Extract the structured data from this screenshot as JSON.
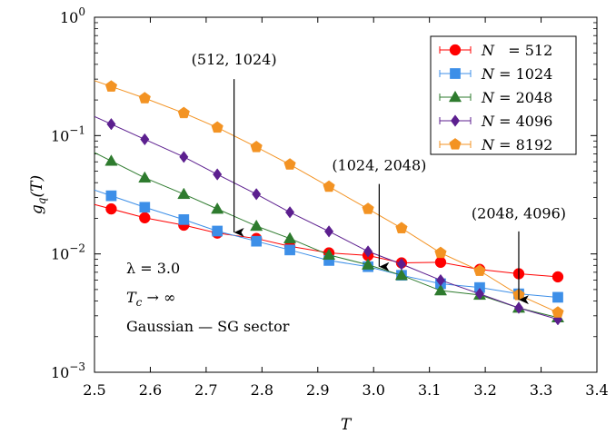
{
  "chart_data": {
    "type": "line",
    "title": "",
    "xlabel": "T",
    "ylabel": "g_q(T)",
    "xlim": [
      2.5,
      3.4
    ],
    "ylim": [
      0.001,
      1
    ],
    "yscale": "log",
    "grid": false,
    "legend_position": "top-right",
    "x_ticks": [
      2.5,
      2.6,
      2.7,
      2.8,
      2.9,
      3.0,
      3.1,
      3.2,
      3.3,
      3.4
    ],
    "x_tick_labels": [
      "2.5",
      "2.6",
      "2.7",
      "2.8",
      "2.9",
      "3.0",
      "3.1",
      "3.2",
      "3.3",
      "3.4"
    ],
    "y_ticks": [
      {
        "value": 1,
        "base": "10",
        "exp": "0"
      },
      {
        "value": 0.1,
        "base": "10",
        "exp": "−1"
      },
      {
        "value": 0.01,
        "base": "10",
        "exp": "−2"
      },
      {
        "value": 0.001,
        "base": "10",
        "exp": "−3"
      }
    ],
    "series": [
      {
        "name": "N = 512",
        "legend_label": "N   = 512",
        "color": "#ff0000",
        "marker": "circle",
        "x": [
          2.53,
          2.59,
          2.66,
          2.72,
          2.79,
          2.85,
          2.92,
          2.99,
          3.05,
          3.12,
          3.19,
          3.26,
          3.33
        ],
        "y": [
          0.024,
          0.0202,
          0.0175,
          0.015,
          0.0135,
          0.0116,
          0.0102,
          0.0097,
          0.0084,
          0.0085,
          0.0074,
          0.0068,
          0.0064
        ]
      },
      {
        "name": "N = 1024",
        "legend_label": "N = 1024",
        "color": "#3d8fe8",
        "marker": "square",
        "x": [
          2.53,
          2.59,
          2.66,
          2.72,
          2.79,
          2.85,
          2.92,
          2.99,
          3.05,
          3.12,
          3.19,
          3.26,
          3.33
        ],
        "y": [
          0.031,
          0.0248,
          0.0195,
          0.0156,
          0.0128,
          0.0108,
          0.0088,
          0.0078,
          0.0066,
          0.0056,
          0.0052,
          0.0046,
          0.0043
        ]
      },
      {
        "name": "N = 2048",
        "legend_label": "N = 2048",
        "color": "#2e7b2e",
        "marker": "triangle",
        "x": [
          2.53,
          2.59,
          2.66,
          2.72,
          2.79,
          2.85,
          2.92,
          2.99,
          3.05,
          3.12,
          3.19,
          3.26,
          3.33
        ],
        "y": [
          0.061,
          0.044,
          0.032,
          0.024,
          0.0172,
          0.0135,
          0.0098,
          0.0081,
          0.0066,
          0.0049,
          0.0045,
          0.0035,
          0.0029
        ]
      },
      {
        "name": "N = 4096",
        "legend_label": "N = 4096",
        "color": "#5c1f8f",
        "marker": "diamond",
        "x": [
          2.53,
          2.59,
          2.66,
          2.72,
          2.79,
          2.85,
          2.92,
          2.99,
          3.05,
          3.12,
          3.19,
          3.26,
          3.33
        ],
        "y": [
          0.125,
          0.093,
          0.066,
          0.047,
          0.032,
          0.0225,
          0.0155,
          0.0105,
          0.0082,
          0.006,
          0.0046,
          0.0035,
          0.0028
        ]
      },
      {
        "name": "N = 8192",
        "legend_label": "N = 8192",
        "color": "#f39323",
        "marker": "pentagon",
        "x": [
          2.53,
          2.59,
          2.66,
          2.72,
          2.79,
          2.85,
          2.92,
          2.99,
          3.05,
          3.12,
          3.19,
          3.26,
          3.33
        ],
        "y": [
          0.26,
          0.207,
          0.155,
          0.117,
          0.08,
          0.057,
          0.037,
          0.024,
          0.0165,
          0.0102,
          0.0072,
          0.0045,
          0.0032
        ]
      }
    ],
    "annotations": [
      {
        "text": "(512, 1024)",
        "label_x": 2.75,
        "label_y": 0.4,
        "arrow_from_y": 0.3,
        "x": 2.75,
        "y": 0.0152
      },
      {
        "text": "(1024, 2048)",
        "label_x": 3.01,
        "label_y": 0.051,
        "arrow_from_y": 0.039,
        "x": 3.01,
        "y": 0.0078
      },
      {
        "text": "(2048, 4096)",
        "label_x": 3.26,
        "label_y": 0.02,
        "arrow_from_y": 0.0155,
        "x": 3.26,
        "y": 0.0041
      }
    ],
    "info_lines": [
      "λ  = 3.0",
      "T_c → ∞",
      "Gaussian — SG sector"
    ]
  }
}
